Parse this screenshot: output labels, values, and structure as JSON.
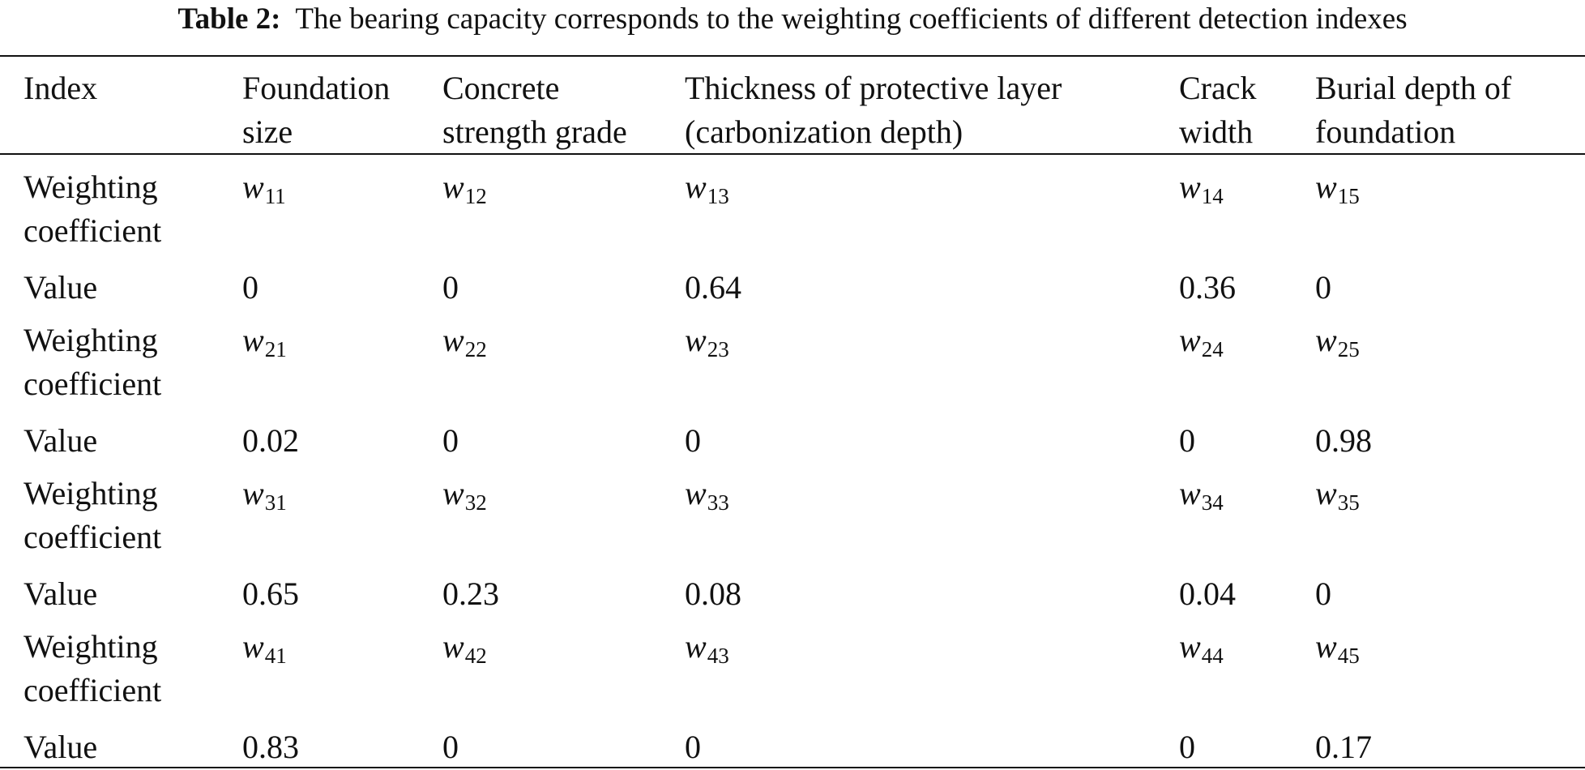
{
  "table": {
    "caption_label": "Table 2:",
    "caption_text": "The bearing capacity corresponds to the weighting coefficients of different detection indexes",
    "headers": [
      [
        "Index"
      ],
      [
        "Foundation",
        "size"
      ],
      [
        "Concrete",
        "strength grade"
      ],
      [
        "Thickness of protective layer",
        "(carbonization depth)"
      ],
      [
        "Crack",
        "width"
      ],
      [
        "Burial depth of",
        "foundation"
      ]
    ],
    "row_labels": {
      "weighting": [
        "Weighting",
        "coefficient"
      ],
      "value": "Value"
    },
    "coef_symbol": "w",
    "groups": [
      {
        "coef_subs": [
          "11",
          "12",
          "13",
          "14",
          "15"
        ],
        "values": [
          "0",
          "0",
          "0.64",
          "0.36",
          "0"
        ]
      },
      {
        "coef_subs": [
          "21",
          "22",
          "23",
          "24",
          "25"
        ],
        "values": [
          "0.02",
          "0",
          "0",
          "0",
          "0.98"
        ]
      },
      {
        "coef_subs": [
          "31",
          "32",
          "33",
          "34",
          "35"
        ],
        "values": [
          "0.65",
          "0.23",
          "0.08",
          "0.04",
          "0"
        ]
      },
      {
        "coef_subs": [
          "41",
          "42",
          "43",
          "44",
          "45"
        ],
        "values": [
          "0.83",
          "0",
          "0",
          "0",
          "0.17"
        ]
      }
    ]
  }
}
